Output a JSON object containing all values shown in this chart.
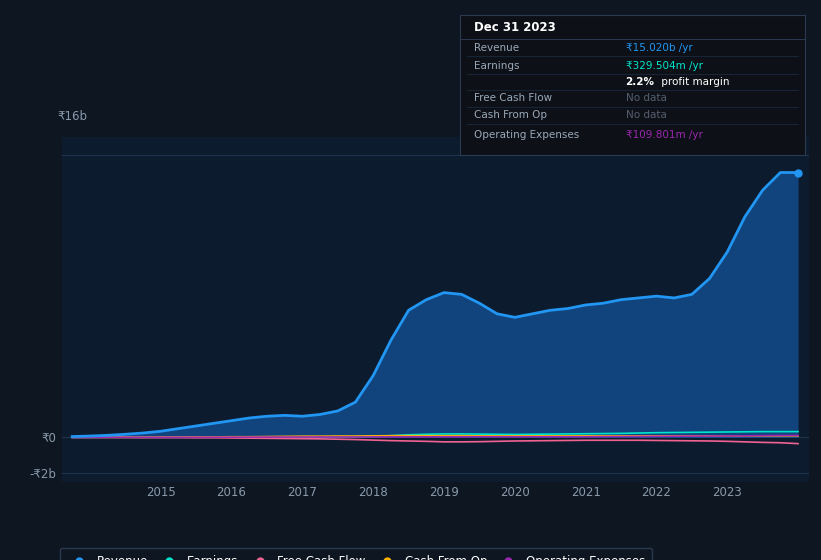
{
  "bg_color": "#0e1621",
  "plot_bg_color": "#0e1621",
  "chart_bg_color": "#0d1b2e",
  "grid_color": "#1a2e45",
  "years": [
    2013.75,
    2014.0,
    2014.25,
    2014.5,
    2014.75,
    2015.0,
    2015.25,
    2015.5,
    2015.75,
    2016.0,
    2016.25,
    2016.5,
    2016.75,
    2017.0,
    2017.25,
    2017.5,
    2017.75,
    2018.0,
    2018.25,
    2018.5,
    2018.75,
    2019.0,
    2019.25,
    2019.5,
    2019.75,
    2020.0,
    2020.25,
    2020.5,
    2020.75,
    2021.0,
    2021.25,
    2021.5,
    2021.75,
    2022.0,
    2022.25,
    2022.5,
    2022.75,
    2023.0,
    2023.25,
    2023.5,
    2023.75,
    2024.0
  ],
  "revenue": [
    0.05,
    0.08,
    0.12,
    0.18,
    0.25,
    0.35,
    0.5,
    0.65,
    0.8,
    0.95,
    1.1,
    1.2,
    1.25,
    1.2,
    1.3,
    1.5,
    2.0,
    3.5,
    5.5,
    7.2,
    7.8,
    8.2,
    8.1,
    7.6,
    7.0,
    6.8,
    7.0,
    7.2,
    7.3,
    7.5,
    7.6,
    7.8,
    7.9,
    8.0,
    7.9,
    8.1,
    9.0,
    10.5,
    12.5,
    14.0,
    15.0,
    15.0
  ],
  "earnings": [
    0.005,
    0.005,
    0.005,
    0.006,
    0.007,
    0.008,
    0.01,
    0.012,
    0.014,
    0.016,
    0.018,
    0.02,
    0.022,
    0.022,
    0.024,
    0.026,
    0.03,
    0.05,
    0.1,
    0.15,
    0.18,
    0.2,
    0.2,
    0.19,
    0.18,
    0.17,
    0.18,
    0.19,
    0.2,
    0.21,
    0.22,
    0.23,
    0.25,
    0.27,
    0.28,
    0.29,
    0.3,
    0.31,
    0.32,
    0.33,
    0.33,
    0.33
  ],
  "free_cash_flow": [
    0.0,
    0.0,
    0.0,
    0.0,
    -0.01,
    -0.01,
    -0.01,
    -0.02,
    -0.02,
    -0.03,
    -0.04,
    -0.05,
    -0.06,
    -0.07,
    -0.08,
    -0.1,
    -0.12,
    -0.15,
    -0.18,
    -0.2,
    -0.22,
    -0.25,
    -0.25,
    -0.24,
    -0.22,
    -0.2,
    -0.19,
    -0.18,
    -0.17,
    -0.16,
    -0.16,
    -0.16,
    -0.16,
    -0.17,
    -0.18,
    -0.19,
    -0.2,
    -0.22,
    -0.25,
    -0.28,
    -0.3,
    -0.35
  ],
  "cash_from_op": [
    0.01,
    0.01,
    0.01,
    0.01,
    0.01,
    0.02,
    0.02,
    0.03,
    0.03,
    0.04,
    0.04,
    0.05,
    0.06,
    0.07,
    0.07,
    0.08,
    0.08,
    0.09,
    0.1,
    0.1,
    0.1,
    0.1,
    0.1,
    0.09,
    0.09,
    0.09,
    0.09,
    0.09,
    0.09,
    0.09,
    0.09,
    0.09,
    0.09,
    0.09,
    0.09,
    0.09,
    0.09,
    0.09,
    0.09,
    0.09,
    0.09,
    0.09
  ],
  "operating_expenses": [
    0.005,
    0.005,
    0.006,
    0.007,
    0.008,
    0.009,
    0.01,
    0.012,
    0.014,
    0.016,
    0.018,
    0.02,
    0.022,
    0.024,
    0.025,
    0.026,
    0.027,
    0.028,
    0.03,
    0.032,
    0.034,
    0.036,
    0.038,
    0.04,
    0.04,
    0.04,
    0.04,
    0.04,
    0.04,
    0.04,
    0.05,
    0.055,
    0.06,
    0.065,
    0.07,
    0.075,
    0.08,
    0.085,
    0.09,
    0.1,
    0.11,
    0.11
  ],
  "revenue_color": "#2196f3",
  "revenue_fill_color": "#1565c0",
  "earnings_color": "#00e5cc",
  "free_cash_flow_color": "#f06292",
  "cash_from_op_color": "#ffb300",
  "operating_expenses_color": "#9c27b0",
  "ylim": [
    -2.5,
    17.0
  ],
  "xlim": [
    2013.6,
    2024.15
  ],
  "yticks": [
    -2,
    0,
    16
  ],
  "ytick_labels": [
    "-₹2b",
    "₹0",
    "₹16b"
  ],
  "xticks": [
    2015,
    2016,
    2017,
    2018,
    2019,
    2020,
    2021,
    2022,
    2023
  ],
  "hlines": [
    0,
    16
  ],
  "legend_items": [
    {
      "label": "Revenue",
      "color": "#2196f3"
    },
    {
      "label": "Earnings",
      "color": "#00e5cc"
    },
    {
      "label": "Free Cash Flow",
      "color": "#f06292"
    },
    {
      "label": "Cash From Op",
      "color": "#ffb300"
    },
    {
      "label": "Operating Expenses",
      "color": "#9c27b0"
    }
  ],
  "tooltip": {
    "date": "Dec 31 2023",
    "rows": [
      {
        "label": "Revenue",
        "value": "₹15.020b /yr",
        "value_color": "#2196f3"
      },
      {
        "label": "Earnings",
        "value": "₹329.504m /yr",
        "value_color": "#00e5cc"
      },
      {
        "label": "",
        "value_bold": "2.2%",
        "value_rest": " profit margin",
        "value_color": "#ffffff"
      },
      {
        "label": "Free Cash Flow",
        "value": "No data",
        "value_color": "#555e6e"
      },
      {
        "label": "Cash From Op",
        "value": "No data",
        "value_color": "#555e6e"
      },
      {
        "label": "Operating Expenses",
        "value": "₹109.801m /yr",
        "value_color": "#9c27b0"
      }
    ]
  }
}
